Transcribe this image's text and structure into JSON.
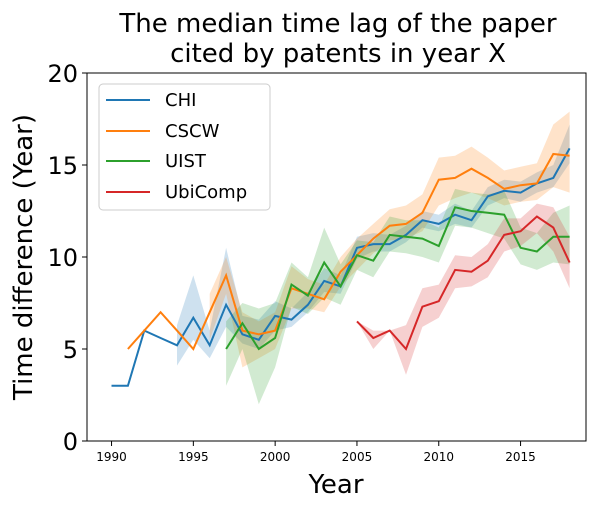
{
  "chart_data": {
    "type": "line",
    "title": [
      "The median time lag of the paper",
      "cited by patents in year X"
    ],
    "xlabel": "Year",
    "ylabel": "Time difference (Year)",
    "xlim": [
      1988.5,
      2019
    ],
    "ylim": [
      0,
      20
    ],
    "xticks": [
      1990,
      1995,
      2000,
      2005,
      2010,
      2015
    ],
    "yticks": [
      0,
      5,
      10,
      15,
      20
    ],
    "grid": false,
    "legend_position": "upper-left",
    "series": [
      {
        "name": "CHI",
        "color": "#1f77b4",
        "x": [
          1990,
          1991,
          1992,
          1993,
          1994,
          1995,
          1996,
          1997,
          1998,
          1999,
          2000,
          2001,
          2002,
          2003,
          2004,
          2005,
          2006,
          2007,
          2008,
          2009,
          2010,
          2011,
          2012,
          2013,
          2014,
          2015,
          2016,
          2017,
          2018
        ],
        "y": [
          3,
          3,
          6,
          5.6,
          5.2,
          6.7,
          5.2,
          7.4,
          5.8,
          5.5,
          6.8,
          6.6,
          7.4,
          8.7,
          8.4,
          10.5,
          10.7,
          10.7,
          11.2,
          12,
          11.8,
          12.3,
          12,
          13.3,
          13.6,
          13.5,
          14,
          14.3,
          15.9
        ],
        "lower": [
          null,
          null,
          null,
          null,
          4.1,
          5.5,
          4.5,
          6.2,
          5.3,
          5,
          6,
          6.2,
          7,
          8.1,
          8,
          9.9,
          10.3,
          10.3,
          10.8,
          11.6,
          11.4,
          11.8,
          11.6,
          12.8,
          13.2,
          13,
          13.5,
          13.8,
          15.1
        ],
        "upper": [
          null,
          null,
          null,
          null,
          6.3,
          9,
          6,
          10.5,
          6.8,
          6.6,
          7.6,
          7.2,
          8.1,
          9.4,
          9,
          11.1,
          11.3,
          11.2,
          11.7,
          12.5,
          12.3,
          12.9,
          12.5,
          13.8,
          14.2,
          14.1,
          14.6,
          15,
          17.2
        ]
      },
      {
        "name": "CSCW",
        "color": "#ff7f0e",
        "x": [
          1991,
          1992,
          1993,
          1994,
          1995,
          1996,
          1997,
          1998,
          1999,
          2000,
          2001,
          2002,
          2003,
          2004,
          2005,
          2006,
          2007,
          2008,
          2009,
          2010,
          2011,
          2012,
          2013,
          2014,
          2015,
          2016,
          2017,
          2018
        ],
        "y": [
          5,
          6,
          7,
          6,
          5,
          7,
          9,
          6,
          5.8,
          6,
          8.3,
          8,
          7.7,
          9.2,
          10.1,
          11,
          11.7,
          11.8,
          12.4,
          14.2,
          14.3,
          14.8,
          14.3,
          13.7,
          13.9,
          14,
          15.6,
          15.5
        ],
        "lower": [
          null,
          null,
          null,
          null,
          null,
          5.5,
          8,
          4,
          4.5,
          5,
          7.2,
          7.2,
          7,
          8.4,
          9.3,
          10.2,
          10.9,
          11,
          11.4,
          12.8,
          13.2,
          13.5,
          13.2,
          12.8,
          13,
          13.1,
          13.8,
          13.5
        ],
        "upper": [
          null,
          null,
          null,
          null,
          null,
          8,
          10,
          7,
          6.5,
          7,
          9.5,
          8.8,
          8.5,
          10,
          11,
          11.8,
          12.6,
          12.8,
          13.4,
          15.4,
          15.5,
          16,
          15.4,
          14.7,
          14.9,
          15.1,
          17.2,
          17.9
        ]
      },
      {
        "name": "UIST",
        "color": "#2ca02c",
        "x": [
          1997,
          1998,
          1999,
          2000,
          2001,
          2002,
          2003,
          2004,
          2005,
          2006,
          2007,
          2008,
          2009,
          2010,
          2011,
          2012,
          2013,
          2014,
          2015,
          2016,
          2017,
          2018
        ],
        "y": [
          5,
          6.4,
          5,
          5.6,
          8.5,
          7.9,
          9.7,
          8.4,
          10.1,
          9.8,
          11.2,
          11.1,
          11,
          10.6,
          12.7,
          12.5,
          12.4,
          12.3,
          10.5,
          10.3,
          11.1,
          11.1
        ],
        "lower": [
          3,
          5,
          2,
          4,
          7.3,
          6.9,
          7.8,
          7.4,
          9.3,
          8.9,
          10.3,
          10.2,
          10,
          9.7,
          11.7,
          11.6,
          11.3,
          11,
          9.6,
          9.3,
          9.7,
          9.6
        ],
        "upper": [
          6.5,
          7.5,
          7.2,
          7.5,
          9.7,
          8.9,
          11.6,
          9.6,
          10.9,
          10.8,
          12.2,
          12,
          12,
          11.6,
          13.7,
          13.5,
          13.4,
          13.6,
          11.6,
          11.3,
          12.4,
          12.8
        ]
      },
      {
        "name": "UbiComp",
        "color": "#d62728",
        "x": [
          2005,
          2006,
          2007,
          2008,
          2009,
          2010,
          2011,
          2012,
          2013,
          2014,
          2015,
          2016,
          2017,
          2018
        ],
        "y": [
          6.5,
          5.6,
          6,
          5,
          7.3,
          7.6,
          9.3,
          9.2,
          9.8,
          11.2,
          11.4,
          12.2,
          11.6,
          9.7
        ],
        "lower": [
          6.5,
          5,
          6,
          3.6,
          6.2,
          6.7,
          8.3,
          8.4,
          8.9,
          10.3,
          10.6,
          11.3,
          10.3,
          8.3
        ],
        "upper": [
          6.5,
          6,
          6,
          6.3,
          8.3,
          8.5,
          10.1,
          10,
          10.7,
          12.1,
          12.1,
          12.9,
          12.7,
          11.1
        ]
      }
    ]
  }
}
